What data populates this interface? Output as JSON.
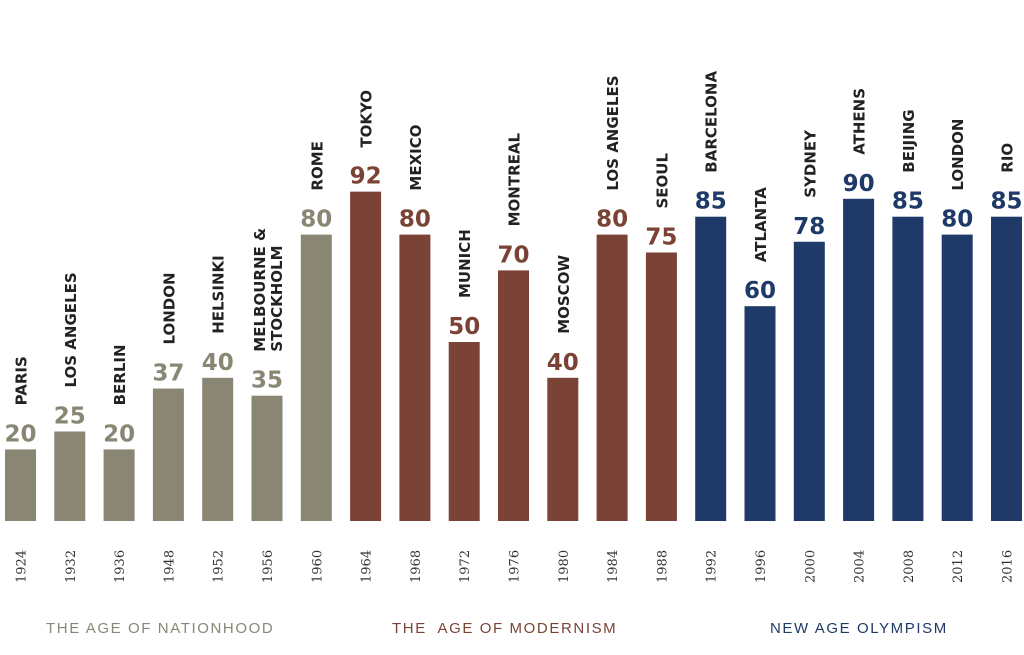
{
  "chart_data": {
    "type": "bar",
    "categories": [
      "1924",
      "1932",
      "1936",
      "1948",
      "1952",
      "1956",
      "1960",
      "1964",
      "1968",
      "1972",
      "1976",
      "1980",
      "1984",
      "1988",
      "1992",
      "1996",
      "2000",
      "2004",
      "2008",
      "2012",
      "2016"
    ],
    "cities": [
      [
        "PARIS"
      ],
      [
        "LOS ANGELES"
      ],
      [
        "BERLIN"
      ],
      [
        "LONDON"
      ],
      [
        "HELSINKI"
      ],
      [
        "MELBOURNE &",
        "STOCKHOLM"
      ],
      [
        "ROME"
      ],
      [
        "TOKYO"
      ],
      [
        "MEXICO"
      ],
      [
        "MUNICH"
      ],
      [
        "MONTREAL"
      ],
      [
        "MOSCOW"
      ],
      [
        "LOS ANGELES"
      ],
      [
        "SEOUL"
      ],
      [
        "BARCELONA"
      ],
      [
        "ATLANTA"
      ],
      [
        "SYDNEY"
      ],
      [
        "ATHENS"
      ],
      [
        "BEIJING"
      ],
      [
        "LONDON"
      ],
      [
        "RIO"
      ]
    ],
    "values": [
      20,
      25,
      20,
      37,
      40,
      35,
      80,
      92,
      80,
      50,
      70,
      40,
      80,
      75,
      85,
      60,
      78,
      90,
      85,
      80,
      85
    ],
    "groups": [
      {
        "name": "THE AGE OF NATIONHOOD",
        "start": 0,
        "end": 6,
        "color": "#898774"
      },
      {
        "name": "THE  AGE OF MODERNISM",
        "start": 7,
        "end": 13,
        "color": "#7b4335"
      },
      {
        "name": "NEW AGE OLYMPISM",
        "start": 14,
        "end": 20,
        "color": "#1f3a68"
      }
    ],
    "ylim": [
      0,
      100
    ],
    "grid": false,
    "legend": "bottom"
  }
}
